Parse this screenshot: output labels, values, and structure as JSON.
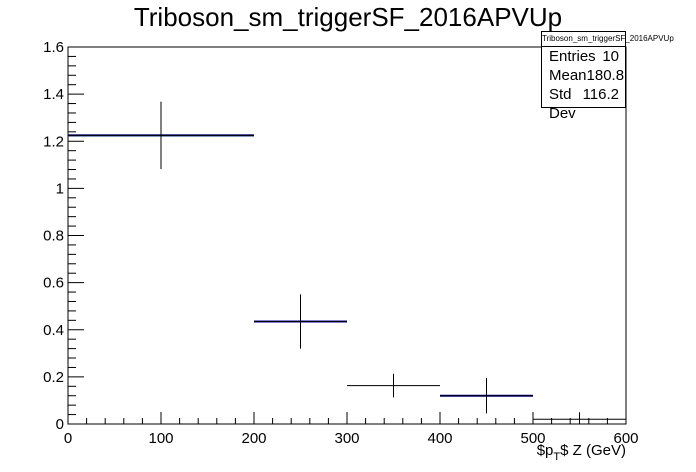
{
  "chart_data": {
    "type": "histogram",
    "title": "Triboson_sm_triggerSF_2016APVUp",
    "xlabel": "$p_T$ Z (GeV)",
    "xlabel_parts": {
      "main": "$p",
      "sub": "T",
      "rest": "$ Z (GeV)"
    },
    "ylabel": "",
    "xlim": [
      0,
      600
    ],
    "ylim": [
      0,
      1.6
    ],
    "x_ticks": [
      "0",
      "100",
      "200",
      "300",
      "400",
      "500",
      "600"
    ],
    "y_ticks": [
      "0",
      "0.2",
      "0.4",
      "0.6",
      "0.8",
      "1",
      "1.2",
      "1.4",
      "1.6"
    ],
    "bins": [
      {
        "xlow": 0,
        "xhigh": 200,
        "value": 1.225,
        "error": 0.143
      },
      {
        "xlow": 200,
        "xhigh": 300,
        "value": 0.435,
        "error": 0.115
      },
      {
        "xlow": 300,
        "xhigh": 400,
        "value": 0.163,
        "error": 0.05
      },
      {
        "xlow": 400,
        "xhigh": 500,
        "value": 0.12,
        "error": 0.075
      },
      {
        "xlow": 500,
        "xhigh": 600,
        "value": 0.02,
        "error": 0.03
      }
    ],
    "overlays": [
      {
        "xlow": 0,
        "xhigh": 200,
        "value": 1.225,
        "color": "#00aa00"
      },
      {
        "xlow": 0,
        "xhigh": 200,
        "value": 1.225,
        "color": "#000099"
      },
      {
        "xlow": 200,
        "xhigh": 300,
        "value": 0.435,
        "color": "#000099"
      },
      {
        "xlow": 400,
        "xhigh": 500,
        "value": 0.12,
        "color": "#000099"
      }
    ],
    "stats": {
      "name": "Triboson_sm_triggerSF_2016APVUp",
      "entries_label": "Entries",
      "entries": "10",
      "mean_label": "Mean",
      "mean": "180.8",
      "stddev_label": "Std Dev",
      "stddev": "116.2"
    },
    "colors": {
      "axis": "#000000",
      "errorbars": "#000000"
    },
    "grid": false
  }
}
